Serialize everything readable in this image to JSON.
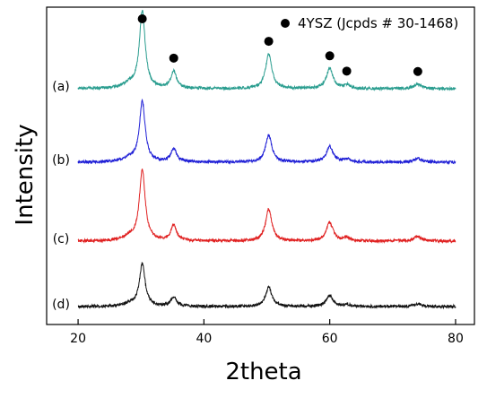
{
  "chart_data": {
    "type": "line",
    "xlabel": "2theta",
    "ylabel": "Intensity",
    "xlim": [
      15,
      83
    ],
    "xticks": [
      20,
      40,
      60,
      80
    ],
    "y_ticks_shown": false,
    "grid": false,
    "legend": {
      "position": "top-right",
      "marker": "filled-circle",
      "label": "4YSZ (Jcpds # 30-1468)"
    },
    "peak_markers": {
      "marker": "filled-circle",
      "x": [
        30.2,
        35.2,
        50.3,
        60.0,
        62.7,
        74.0
      ]
    },
    "peaks": [
      {
        "x": 30.2,
        "rel_height": 1.0,
        "width": 0.55
      },
      {
        "x": 35.2,
        "rel_height": 0.22,
        "width": 0.55
      },
      {
        "x": 50.3,
        "rel_height": 0.45,
        "width": 0.6
      },
      {
        "x": 60.0,
        "rel_height": 0.26,
        "width": 0.65
      },
      {
        "x": 62.7,
        "rel_height": 0.05,
        "width": 0.5
      },
      {
        "x": 74.0,
        "rel_height": 0.06,
        "width": 0.7
      }
    ],
    "series": [
      {
        "name": "(a)",
        "color": "#2a9d8f",
        "baseline": 0.0,
        "scale": 1.0
      },
      {
        "name": "(b)",
        "color": "#1f1fd6",
        "baseline": 0.0,
        "scale": 0.78
      },
      {
        "name": "(c)",
        "color": "#e02020",
        "baseline": 0.0,
        "scale": 0.92
      },
      {
        "name": "(d)",
        "color": "#111111",
        "baseline": 0.0,
        "scale": 0.55
      }
    ]
  }
}
